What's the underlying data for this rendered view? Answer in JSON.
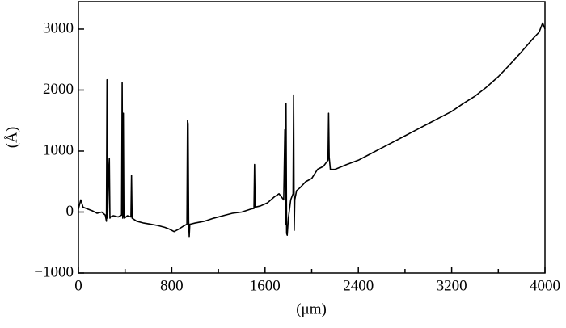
{
  "chart_data": {
    "type": "line",
    "xlabel": "(μm)",
    "ylabel": "(Å)",
    "color": "#000000",
    "xlim": [
      0,
      4000
    ],
    "ylim": [
      -1000,
      3450
    ],
    "xticks": [
      0,
      800,
      1600,
      2400,
      3200,
      4000
    ],
    "xminorticks": [
      400,
      1200,
      2000,
      2800,
      3600
    ],
    "yticks": [
      {
        "value": -1000,
        "label": "−1000"
      },
      0,
      1000,
      2000,
      3000
    ],
    "x": [
      0,
      20,
      40,
      80,
      120,
      160,
      200,
      230,
      240,
      245,
      250,
      260,
      265,
      270,
      275,
      300,
      340,
      370,
      375,
      380,
      385,
      390,
      395,
      420,
      450,
      455,
      460,
      500,
      560,
      620,
      680,
      740,
      780,
      820,
      860,
      900,
      930,
      935,
      940,
      945,
      950,
      955,
      1000,
      1080,
      1160,
      1240,
      1320,
      1400,
      1480,
      1505,
      1510,
      1515,
      1560,
      1620,
      1680,
      1720,
      1760,
      1770,
      1775,
      1780,
      1785,
      1790,
      1800,
      1820,
      1840,
      1845,
      1850,
      1855,
      1870,
      1900,
      1950,
      2000,
      2050,
      2100,
      2140,
      2145,
      2150,
      2160,
      2200,
      2300,
      2400,
      2500,
      2600,
      2700,
      2800,
      2900,
      3000,
      3100,
      3200,
      3300,
      3400,
      3500,
      3600,
      3700,
      3800,
      3900,
      3950,
      3980,
      4000
    ],
    "values": [
      50,
      200,
      80,
      50,
      20,
      -20,
      0,
      -50,
      -150,
      2170,
      -100,
      700,
      880,
      -100,
      -80,
      -60,
      -80,
      -50,
      2120,
      -100,
      1620,
      -80,
      -100,
      -60,
      -80,
      600,
      -100,
      -150,
      -180,
      -200,
      -220,
      -250,
      -280,
      -320,
      -280,
      -230,
      -200,
      1500,
      1450,
      -150,
      -400,
      -200,
      -180,
      -150,
      -100,
      -60,
      -20,
      0,
      50,
      60,
      780,
      80,
      100,
      150,
      250,
      300,
      200,
      1350,
      -200,
      1780,
      -350,
      -380,
      -100,
      200,
      300,
      1920,
      -300,
      200,
      350,
      400,
      500,
      550,
      700,
      750,
      850,
      1620,
      900,
      700,
      700,
      780,
      850,
      950,
      1050,
      1150,
      1250,
      1350,
      1450,
      1550,
      1650,
      1780,
      1900,
      2050,
      2220,
      2420,
      2630,
      2850,
      2950,
      3100,
      3000
    ]
  }
}
